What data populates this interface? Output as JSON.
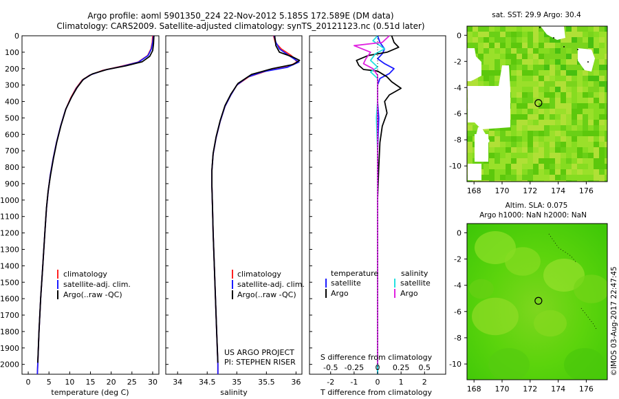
{
  "header": {
    "title_line1": "Argo profile: aoml 5901350_224 22-Nov-2012 5.185S 172.589E (DM data)",
    "title_line2": "Climatology: CARS2009. Satellite-adjusted climatology: synTS_20121123.nc (0.51d later)"
  },
  "watermark": "©IMOS 03-Aug-2017 22:47:45",
  "colors": {
    "climatology": "#ff2020",
    "satellite": "#1a1aff",
    "argo": "#000000",
    "sal_satellite": "#22e0e0",
    "sal_argo": "#e020e0"
  },
  "chart_data": [
    {
      "type": "line",
      "name": "temperature-profile",
      "xlabel": "temperature (deg C)",
      "xlim": [
        -1.5,
        31.5
      ],
      "xticks": [
        0,
        5,
        10,
        15,
        20,
        25,
        30
      ],
      "ylim": [
        0,
        2060
      ],
      "yticks": [
        0,
        100,
        200,
        300,
        400,
        500,
        600,
        700,
        800,
        900,
        1000,
        1100,
        1200,
        1300,
        1400,
        1500,
        1600,
        1700,
        1800,
        1900,
        2000
      ],
      "legend": [
        "climatology",
        "satellite-adj. clim.",
        "Argo(..raw -QC)"
      ],
      "series": [
        {
          "name": "climatology",
          "color": "#ff2020",
          "points": [
            [
              30.0,
              0
            ],
            [
              29.9,
              40
            ],
            [
              29.6,
              80
            ],
            [
              28.8,
              120
            ],
            [
              26.5,
              160
            ],
            [
              22.5,
              185
            ],
            [
              18.0,
              210
            ],
            [
              14.8,
              240
            ],
            [
              13.0,
              270
            ],
            [
              11.5,
              320
            ],
            [
              10.2,
              380
            ],
            [
              9.0,
              450
            ],
            [
              7.8,
              550
            ],
            [
              6.8,
              650
            ],
            [
              6.0,
              750
            ],
            [
              5.3,
              850
            ],
            [
              4.8,
              950
            ],
            [
              4.4,
              1050
            ],
            [
              4.0,
              1200
            ],
            [
              3.5,
              1400
            ],
            [
              3.0,
              1600
            ],
            [
              2.6,
              1800
            ],
            [
              2.3,
              2000
            ],
            [
              2.2,
              2060
            ]
          ]
        },
        {
          "name": "satellite",
          "color": "#1a1aff",
          "points": [
            [
              30.2,
              0
            ],
            [
              30.0,
              40
            ],
            [
              29.7,
              80
            ],
            [
              28.9,
              120
            ],
            [
              26.6,
              160
            ],
            [
              22.8,
              185
            ],
            [
              18.5,
              208
            ],
            [
              15.0,
              238
            ],
            [
              13.1,
              270
            ],
            [
              11.6,
              320
            ],
            [
              10.3,
              380
            ],
            [
              9.0,
              450
            ],
            [
              7.8,
              550
            ],
            [
              6.8,
              650
            ],
            [
              6.0,
              750
            ],
            [
              5.3,
              850
            ],
            [
              4.8,
              950
            ],
            [
              4.4,
              1050
            ],
            [
              4.0,
              1200
            ],
            [
              3.5,
              1400
            ],
            [
              3.0,
              1600
            ],
            [
              2.6,
              1800
            ],
            [
              2.3,
              2000
            ],
            [
              2.2,
              2060
            ]
          ]
        },
        {
          "name": "argo",
          "color": "#000000",
          "points": [
            [
              30.3,
              0
            ],
            [
              30.2,
              50
            ],
            [
              30.0,
              90
            ],
            [
              29.3,
              125
            ],
            [
              27.5,
              158
            ],
            [
              23.5,
              183
            ],
            [
              19.0,
              205
            ],
            [
              15.5,
              232
            ],
            [
              13.3,
              265
            ],
            [
              11.8,
              315
            ],
            [
              10.4,
              375
            ],
            [
              9.1,
              445
            ],
            [
              7.9,
              545
            ],
            [
              6.9,
              645
            ],
            [
              6.1,
              745
            ],
            [
              5.4,
              845
            ],
            [
              4.8,
              945
            ],
            [
              4.4,
              1045
            ],
            [
              4.0,
              1200
            ],
            [
              3.5,
              1400
            ],
            [
              3.0,
              1600
            ],
            [
              2.6,
              1800
            ],
            [
              2.3,
              1990
            ]
          ]
        }
      ]
    },
    {
      "type": "line",
      "name": "salinity-profile",
      "xlabel": "salinity",
      "xlim": [
        33.8,
        36.1
      ],
      "xticks": [
        34,
        34.5,
        35,
        35.5,
        36
      ],
      "xtick_labels": [
        "34",
        "34.5",
        "35",
        "35.5",
        "36"
      ],
      "ylim": [
        0,
        2060
      ],
      "legend": [
        "climatology",
        "satellite-adj. clim.",
        "Argo(..raw -QC)"
      ],
      "annotation": [
        "US ARGO PROJECT",
        "PI: STEPHEN RISER"
      ],
      "series": [
        {
          "name": "climatology",
          "color": "#ff2020",
          "points": [
            [
              35.62,
              0
            ],
            [
              35.65,
              40
            ],
            [
              35.75,
              80
            ],
            [
              35.92,
              120
            ],
            [
              36.02,
              160
            ],
            [
              35.85,
              190
            ],
            [
              35.5,
              215
            ],
            [
              35.2,
              250
            ],
            [
              35.0,
              300
            ],
            [
              34.9,
              360
            ],
            [
              34.8,
              430
            ],
            [
              34.72,
              520
            ],
            [
              34.65,
              620
            ],
            [
              34.6,
              720
            ],
            [
              34.58,
              820
            ],
            [
              34.58,
              920
            ],
            [
              34.59,
              1050
            ],
            [
              34.6,
              1200
            ],
            [
              34.62,
              1400
            ],
            [
              34.64,
              1600
            ],
            [
              34.66,
              1800
            ],
            [
              34.68,
              2000
            ],
            [
              34.68,
              2060
            ]
          ]
        },
        {
          "name": "satellite",
          "color": "#1a1aff",
          "points": [
            [
              35.63,
              0
            ],
            [
              35.66,
              40
            ],
            [
              35.72,
              80
            ],
            [
              35.88,
              120
            ],
            [
              36.05,
              160
            ],
            [
              35.85,
              192
            ],
            [
              35.45,
              218
            ],
            [
              35.18,
              252
            ],
            [
              35.0,
              300
            ],
            [
              34.9,
              360
            ],
            [
              34.8,
              430
            ],
            [
              34.72,
              520
            ],
            [
              34.65,
              620
            ],
            [
              34.6,
              720
            ],
            [
              34.58,
              820
            ],
            [
              34.58,
              920
            ],
            [
              34.59,
              1050
            ],
            [
              34.6,
              1200
            ],
            [
              34.62,
              1400
            ],
            [
              34.64,
              1600
            ],
            [
              34.66,
              1800
            ],
            [
              34.68,
              2000
            ],
            [
              34.68,
              2060
            ]
          ]
        },
        {
          "name": "argo",
          "color": "#000000",
          "points": [
            [
              35.64,
              0
            ],
            [
              35.66,
              60
            ],
            [
              35.72,
              100
            ],
            [
              35.95,
              130
            ],
            [
              36.06,
              150
            ],
            [
              35.95,
              175
            ],
            [
              35.6,
              200
            ],
            [
              35.25,
              235
            ],
            [
              35.02,
              290
            ],
            [
              34.9,
              355
            ],
            [
              34.8,
              425
            ],
            [
              34.72,
              515
            ],
            [
              34.65,
              615
            ],
            [
              34.6,
              715
            ],
            [
              34.58,
              815
            ],
            [
              34.58,
              915
            ],
            [
              34.59,
              1045
            ],
            [
              34.6,
              1200
            ],
            [
              34.62,
              1400
            ],
            [
              34.64,
              1600
            ],
            [
              34.66,
              1800
            ],
            [
              34.68,
              1990
            ]
          ]
        }
      ]
    },
    {
      "type": "line",
      "name": "difference-profile",
      "xlabel": "T difference from climatology",
      "xlim": [
        -2.9,
        2.9
      ],
      "xticks": [
        -2,
        -1,
        0,
        1,
        2
      ],
      "top_label": "S difference from climatology",
      "sxticks": [
        "-0.5",
        "-0.25",
        "0",
        "0.25",
        "0.5"
      ],
      "ylim": [
        0,
        2060
      ],
      "legend_headers": [
        "temperature",
        "salinity"
      ],
      "legend": [
        "satellite",
        "Argo",
        "satellite",
        "Argo"
      ],
      "series": [
        {
          "name": "T satellite",
          "color": "#1a1aff",
          "points": [
            [
              0.0,
              0
            ],
            [
              0.1,
              40
            ],
            [
              0.3,
              80
            ],
            [
              0.2,
              110
            ],
            [
              0.0,
              140
            ],
            [
              0.3,
              170
            ],
            [
              0.7,
              200
            ],
            [
              0.5,
              230
            ],
            [
              0.1,
              260
            ],
            [
              0.0,
              300
            ],
            [
              0.0,
              400
            ],
            [
              0.05,
              500
            ],
            [
              0.0,
              700
            ],
            [
              0.0,
              1000
            ],
            [
              0.0,
              1500
            ],
            [
              0.0,
              2060
            ]
          ]
        },
        {
          "name": "T argo",
          "color": "#000000",
          "points": [
            [
              0.6,
              0
            ],
            [
              0.7,
              40
            ],
            [
              0.9,
              70
            ],
            [
              0.4,
              100
            ],
            [
              -0.4,
              120
            ],
            [
              -0.9,
              150
            ],
            [
              -0.8,
              180
            ],
            [
              -0.6,
              205
            ],
            [
              0.0,
              215
            ],
            [
              0.4,
              250
            ],
            [
              0.6,
              280
            ],
            [
              1.0,
              320
            ],
            [
              0.5,
              360
            ],
            [
              0.3,
              400
            ],
            [
              0.4,
              470
            ],
            [
              0.2,
              550
            ],
            [
              0.1,
              650
            ],
            [
              0.05,
              800
            ],
            [
              0.0,
              1000
            ],
            [
              0.0,
              1500
            ],
            [
              0.0,
              2000
            ]
          ]
        },
        {
          "name": "S satellite",
          "color": "#22e0e0",
          "points": [
            [
              0.0,
              0
            ],
            [
              -0.2,
              30
            ],
            [
              0.1,
              60
            ],
            [
              0.3,
              80
            ],
            [
              -0.1,
              110
            ],
            [
              -0.3,
              150
            ],
            [
              0.0,
              190
            ],
            [
              -0.3,
              220
            ],
            [
              0.0,
              260
            ],
            [
              0.0,
              400
            ],
            [
              -0.05,
              500
            ],
            [
              0.0,
              700
            ],
            [
              0.0,
              1000
            ],
            [
              0.0,
              2060
            ]
          ]
        },
        {
          "name": "S argo",
          "color": "#e020e0",
          "points": [
            [
              0.5,
              0
            ],
            [
              0.2,
              40
            ],
            [
              -1.0,
              60
            ],
            [
              -0.3,
              100
            ],
            [
              -0.5,
              140
            ],
            [
              -0.6,
              170
            ],
            [
              -0.2,
              200
            ],
            [
              0.0,
              240
            ],
            [
              0.0,
              400
            ],
            [
              0.0,
              1000
            ],
            [
              0.0,
              2000
            ]
          ]
        }
      ]
    },
    {
      "type": "heatmap",
      "name": "sst-map",
      "title": "sat. SST: 29.9 Argo: 30.4",
      "xlim": [
        167.5,
        177.5
      ],
      "ylim": [
        -11.2,
        0.7
      ],
      "xticks": [
        168,
        170,
        172,
        174,
        176
      ],
      "yticks": [
        0,
        -2,
        -4,
        -6,
        -8,
        -10
      ],
      "argo_position": [
        172.59,
        -5.185
      ]
    },
    {
      "type": "heatmap",
      "name": "sla-map",
      "title": "Altim. SLA: 0.075",
      "subtitle": "Argo h1000: NaN h2000: NaN",
      "xlim": [
        167.5,
        177.5
      ],
      "ylim": [
        -11.2,
        0.7
      ],
      "xticks": [
        168,
        170,
        172,
        174,
        176
      ],
      "yticks": [
        0,
        -2,
        -4,
        -6,
        -8,
        -10
      ],
      "argo_position": [
        172.59,
        -5.185
      ]
    }
  ]
}
